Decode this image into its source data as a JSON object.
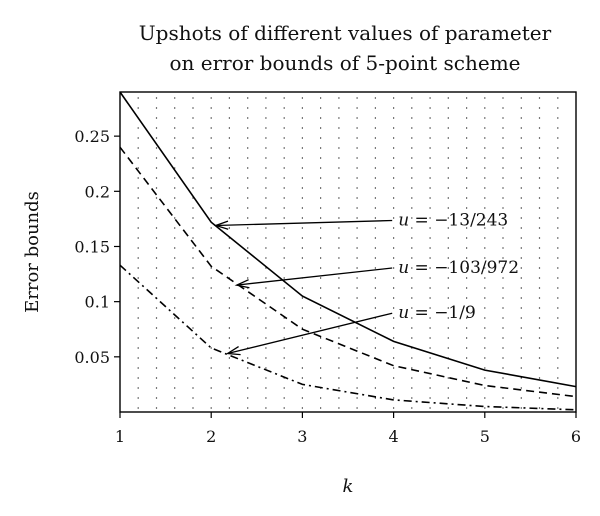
{
  "chart_data": {
    "type": "line",
    "title": "Upshots of different values of parameter",
    "subtitle": "on error bounds of 5-point scheme",
    "xlabel": "k",
    "ylabel": "Error bounds",
    "xlim": [
      1,
      6
    ],
    "ylim": [
      0.0,
      0.29
    ],
    "x_ticks": [
      1,
      2,
      3,
      4,
      5,
      6
    ],
    "y_ticks": [
      0.05,
      0.1,
      0.15,
      0.2,
      0.25
    ],
    "y_tick_labels": [
      "0.05",
      "0.1",
      "0.15",
      "0.2",
      "0.25"
    ],
    "grid": "dotted",
    "x": [
      1,
      2,
      3,
      4,
      5,
      6
    ],
    "series": [
      {
        "name": "u = −13/243",
        "style": "solid",
        "values": [
          0.29,
          0.172,
          0.105,
          0.064,
          0.038,
          0.023
        ]
      },
      {
        "name": "u = −103/972",
        "style": "dashed",
        "values": [
          0.24,
          0.132,
          0.075,
          0.042,
          0.024,
          0.014
        ]
      },
      {
        "name": "u = −1/9",
        "style": "dashdot",
        "values": [
          0.133,
          0.058,
          0.025,
          0.011,
          0.005,
          0.002
        ]
      }
    ],
    "annotations": [
      {
        "label_var": "u",
        "label_value": " = −13/243",
        "series_index": 0,
        "point": [
          2.05,
          0.169
        ],
        "text_at": [
          4.05,
          0.169
        ]
      },
      {
        "label_var": "u",
        "label_value": " = −103/972",
        "series_index": 1,
        "point": [
          2.28,
          0.115
        ],
        "text_at": [
          4.05,
          0.126
        ]
      },
      {
        "label_var": "u",
        "label_value": " = −1/9",
        "series_index": 2,
        "point": [
          2.18,
          0.053
        ],
        "text_at": [
          4.05,
          0.085
        ]
      }
    ]
  }
}
